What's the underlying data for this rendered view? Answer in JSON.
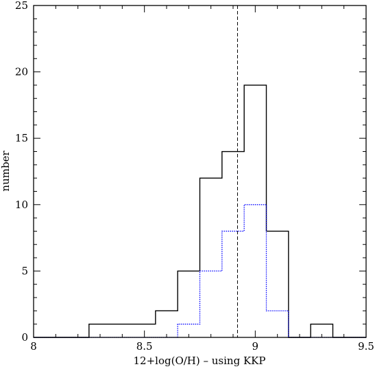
{
  "chart_data": {
    "type": "histogram",
    "xlabel": "12+log(O/H) – using KKP",
    "ylabel": "number",
    "xlim": [
      8.0,
      9.5
    ],
    "ylim": [
      0,
      25
    ],
    "x_ticks": [
      "8",
      "8.5",
      "9",
      "9.5"
    ],
    "x_tick_values": [
      8.0,
      8.5,
      9.0,
      9.5
    ],
    "y_ticks": [
      "0",
      "5",
      "10",
      "15",
      "20",
      "25"
    ],
    "y_tick_values": [
      0,
      5,
      10,
      15,
      20,
      25
    ],
    "bin_edges": [
      8.0,
      8.05,
      8.15,
      8.25,
      8.35,
      8.45,
      8.55,
      8.65,
      8.75,
      8.85,
      8.95,
      9.05,
      9.15,
      9.25,
      9.35,
      9.45,
      9.5
    ],
    "series": [
      {
        "style": "solid",
        "color": "#000000",
        "counts": [
          0,
          0,
          0,
          1,
          1,
          1,
          2,
          5,
          12,
          14,
          19,
          8,
          0,
          1,
          0,
          0
        ]
      },
      {
        "style": "dotted",
        "color": "#0000ff",
        "counts": [
          0,
          0,
          0,
          0,
          0,
          0,
          0,
          1,
          5,
          8,
          10,
          2,
          0,
          0,
          0,
          0
        ]
      }
    ],
    "reference_line": {
      "x": 8.92,
      "style": "dashed",
      "color": "#000000"
    }
  }
}
